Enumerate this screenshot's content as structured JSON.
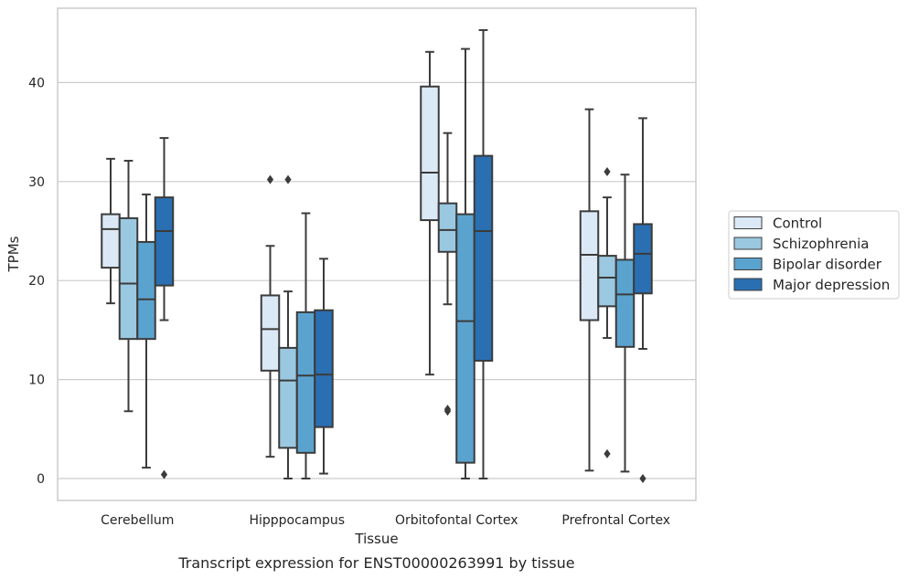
{
  "chart_data": {
    "type": "box",
    "xlabel": "Tissue",
    "ylabel": "TPMs",
    "caption": "Transcript expression for ENST00000263991 by tissue",
    "ylim": [
      -2.2,
      47.5
    ],
    "yticks": [
      "0",
      "10",
      "20",
      "30",
      "40"
    ],
    "grid": "horizontal",
    "legend_position": "right",
    "categories": [
      "Cerebellum",
      "Hipppocampus",
      "Orbitofontal Cortex",
      "Prefrontal Cortex"
    ],
    "series": [
      {
        "name": "Control",
        "color": "#dbe9f6",
        "boxes": [
          {
            "whislo": 17.7,
            "q1": 21.3,
            "med": 25.2,
            "q3": 26.7,
            "whishi": 32.3,
            "fliers": []
          },
          {
            "whislo": 2.2,
            "q1": 10.9,
            "med": 15.1,
            "q3": 18.5,
            "whishi": 23.5,
            "fliers": [
              30.2
            ]
          },
          {
            "whislo": 10.5,
            "q1": 26.1,
            "med": 30.9,
            "q3": 39.6,
            "whishi": 43.1,
            "fliers": []
          },
          {
            "whislo": 0.8,
            "q1": 16.0,
            "med": 22.6,
            "q3": 27.0,
            "whishi": 37.3,
            "fliers": []
          }
        ]
      },
      {
        "name": "Schizophrenia",
        "color": "#9ac8e0",
        "boxes": [
          {
            "whislo": 6.8,
            "q1": 14.1,
            "med": 19.7,
            "q3": 26.3,
            "whishi": 32.1,
            "fliers": []
          },
          {
            "whislo": 0.0,
            "q1": 3.1,
            "med": 9.9,
            "q3": 13.2,
            "whishi": 18.9,
            "fliers": [
              30.2
            ]
          },
          {
            "whislo": 17.6,
            "q1": 22.9,
            "med": 25.1,
            "q3": 27.8,
            "whishi": 34.9,
            "fliers": [
              6.8,
              7.0
            ]
          },
          {
            "whislo": 14.2,
            "q1": 17.4,
            "med": 20.3,
            "q3": 22.5,
            "whishi": 28.4,
            "fliers": [
              31.0,
              2.5
            ]
          }
        ]
      },
      {
        "name": "Bipolar disorder",
        "color": "#5ba3cf",
        "boxes": [
          {
            "whislo": 1.1,
            "q1": 14.1,
            "med": 18.1,
            "q3": 23.9,
            "whishi": 28.7,
            "fliers": []
          },
          {
            "whislo": 0.0,
            "q1": 2.6,
            "med": 10.4,
            "q3": 16.8,
            "whishi": 26.8,
            "fliers": []
          },
          {
            "whislo": 0.0,
            "q1": 1.6,
            "med": 15.9,
            "q3": 26.7,
            "whishi": 43.4,
            "fliers": []
          },
          {
            "whislo": 0.7,
            "q1": 13.3,
            "med": 18.6,
            "q3": 22.1,
            "whishi": 30.7,
            "fliers": []
          }
        ]
      },
      {
        "name": "Major depression",
        "color": "#2a6fb2",
        "boxes": [
          {
            "whislo": 16.0,
            "q1": 19.5,
            "med": 25.0,
            "q3": 28.4,
            "whishi": 34.4,
            "fliers": [
              0.4
            ]
          },
          {
            "whislo": 0.5,
            "q1": 5.2,
            "med": 10.5,
            "q3": 17.0,
            "whishi": 22.2,
            "fliers": []
          },
          {
            "whislo": 0.0,
            "q1": 11.9,
            "med": 25.0,
            "q3": 32.6,
            "whishi": 45.3,
            "fliers": []
          },
          {
            "whislo": 13.1,
            "q1": 18.7,
            "med": 22.7,
            "q3": 25.7,
            "whishi": 36.4,
            "fliers": [
              0.0
            ]
          }
        ]
      }
    ]
  }
}
